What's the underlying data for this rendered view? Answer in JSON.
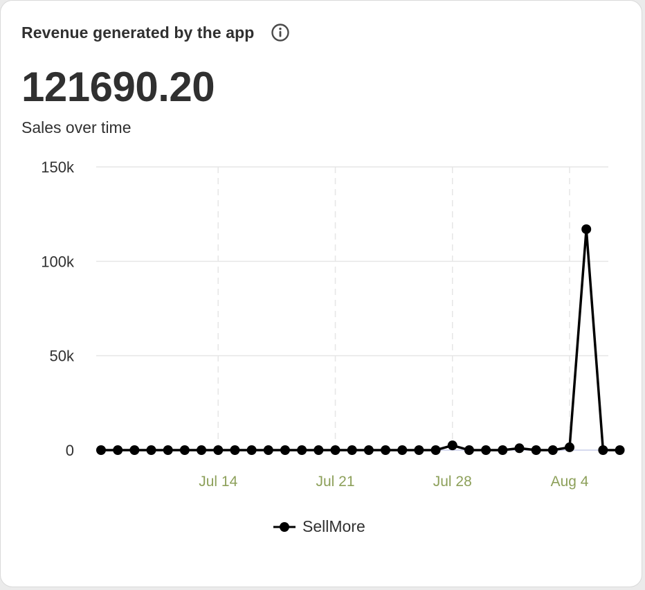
{
  "card": {
    "title": "Revenue generated by the app",
    "info_icon": "info-circle-icon",
    "metric_value": "121690.20",
    "subtitle": "Sales over time"
  },
  "colors": {
    "line": "#000000",
    "grid": "#e6e6e6",
    "x_tick_label": "#8da05a",
    "y_tick_label": "#303030",
    "baseline": "#c9cdea"
  },
  "chart_data": {
    "type": "line",
    "title": "",
    "xlabel": "",
    "ylabel": "",
    "x_start": "Jul 7",
    "x": [
      "Jul 7",
      "Jul 8",
      "Jul 9",
      "Jul 10",
      "Jul 11",
      "Jul 12",
      "Jul 13",
      "Jul 14",
      "Jul 15",
      "Jul 16",
      "Jul 17",
      "Jul 18",
      "Jul 19",
      "Jul 20",
      "Jul 21",
      "Jul 22",
      "Jul 23",
      "Jul 24",
      "Jul 25",
      "Jul 26",
      "Jul 27",
      "Jul 28",
      "Jul 29",
      "Jul 30",
      "Jul 31",
      "Aug 1",
      "Aug 2",
      "Aug 3",
      "Aug 4",
      "Aug 5",
      "Aug 6",
      "Aug 7"
    ],
    "series": [
      {
        "name": "SellMore",
        "values": [
          0,
          0,
          0,
          0,
          0,
          0,
          0,
          0,
          0,
          0,
          0,
          0,
          0,
          0,
          0,
          0,
          0,
          0,
          0,
          0,
          0,
          2500,
          0,
          0,
          0,
          1000,
          0,
          0,
          1500,
          117000,
          0,
          0
        ]
      }
    ],
    "x_ticks": [
      "Jul 14",
      "Jul 21",
      "Jul 28",
      "Aug 4"
    ],
    "y_ticks": [
      0,
      50000,
      100000,
      150000
    ],
    "y_tick_labels": [
      "0",
      "50k",
      "100k",
      "150k"
    ],
    "ylim": [
      0,
      150000
    ],
    "grid": true,
    "legend": "bottom-center"
  }
}
